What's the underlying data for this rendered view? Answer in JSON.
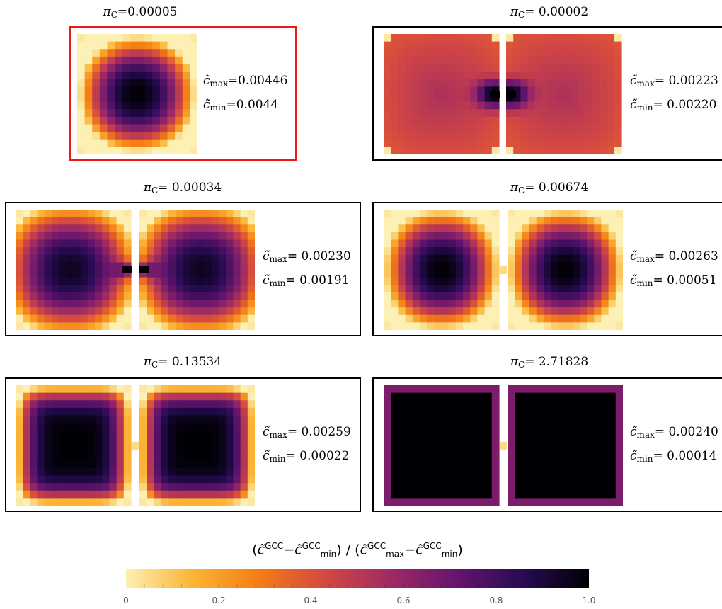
{
  "panels": [
    {
      "id": "p1",
      "pi_label": "π",
      "pi_sub": "C",
      "pi_value": "=0.00005",
      "cmax_label": "c̃",
      "cmax_sub": "max",
      "cmax_value": "=0.00446",
      "cmin_label": "c̃",
      "cmin_sub": "min",
      "cmin_value": "=0.0044",
      "highlighted": true
    },
    {
      "id": "p2",
      "pi_label": "π",
      "pi_sub": "C",
      "pi_value": "= 0.00002",
      "cmax_label": "c̃",
      "cmax_sub": "max",
      "cmax_value": "= 0.00223",
      "cmin_label": "c̃",
      "cmin_sub": "min",
      "cmin_value": "= 0.00220",
      "highlighted": false
    },
    {
      "id": "p3",
      "pi_label": "π",
      "pi_sub": "C",
      "pi_value": "= 0.00034",
      "cmax_label": "c̃",
      "cmax_sub": "max",
      "cmax_value": "= 0.00230",
      "cmin_label": "c̃",
      "cmin_sub": "min",
      "cmin_value": "= 0.00191",
      "highlighted": false
    },
    {
      "id": "p4",
      "pi_label": "π",
      "pi_sub": "C",
      "pi_value": "= 0.00674",
      "cmax_label": "c̃",
      "cmax_sub": "max",
      "cmax_value": "= 0.00263",
      "cmin_label": "c̃",
      "cmin_sub": "min",
      "cmin_value": "= 0.00051",
      "highlighted": false
    },
    {
      "id": "p5",
      "pi_label": "π",
      "pi_sub": "C",
      "pi_value": "= 0.13534",
      "cmax_label": "c̃",
      "cmax_sub": "max",
      "cmax_value": "= 0.00259",
      "cmin_label": "c̃",
      "cmin_sub": "min",
      "cmin_value": "= 0.00022",
      "highlighted": false
    },
    {
      "id": "p6",
      "pi_label": "π",
      "pi_sub": "C",
      "pi_value": "= 2.71828",
      "cmax_label": "c̃",
      "cmax_sub": "max",
      "cmax_value": "= 0.00240",
      "cmin_label": "c̃",
      "cmin_sub": "min",
      "cmin_value": "= 0.00014",
      "highlighted": false
    }
  ],
  "colorbar": {
    "title_open": "(",
    "c_symbol": "c̃",
    "sup": "GCC",
    "minus": "−",
    "sub_min": "min",
    "sub_max": "max",
    "slash": ") / (",
    "close": ")",
    "ticks": [
      "0",
      "0.2",
      "0.4",
      "0.6",
      "0.8",
      "1.0"
    ],
    "stops": [
      "#fcf0b4",
      "#fbb535",
      "#f57d15",
      "#d44842",
      "#9f2a63",
      "#65156e",
      "#280b53",
      "#000004"
    ]
  },
  "colors": {
    "highlight_frame": "#e8191b",
    "frame": "#000000",
    "gap": "#ffffff"
  }
}
